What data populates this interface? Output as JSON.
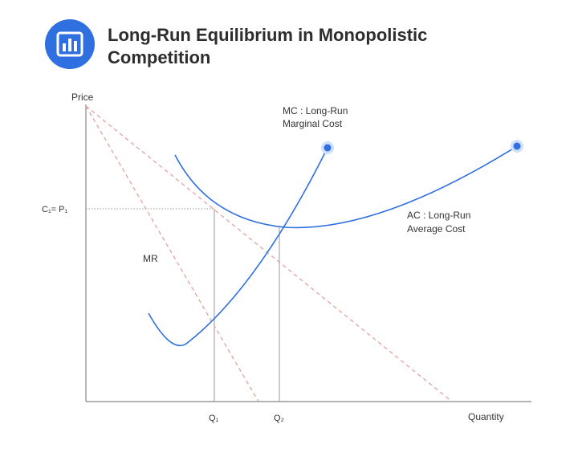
{
  "header": {
    "icon": "bar-chart-icon",
    "accent_color": "#2f6fe0",
    "title_line1": "Long-Run Equilibrium in Monopolistic",
    "title_line2": "Competition"
  },
  "diagram": {
    "y_axis_label": "Price",
    "x_axis_label": "Quantity",
    "price_label": "C₁= P₁",
    "q1_label": "Q₁",
    "q2_label": "Q₂",
    "mr_label": "MR",
    "mc_label_line1": "MC : Long-Run",
    "mc_label_line2": "Marginal Cost",
    "ac_label_line1": "AC : Long-Run",
    "ac_label_line2": "Average Cost",
    "curve_color": "#2f6fe0",
    "demand_color": "#e3a2a2",
    "axis_color": "#888888"
  }
}
